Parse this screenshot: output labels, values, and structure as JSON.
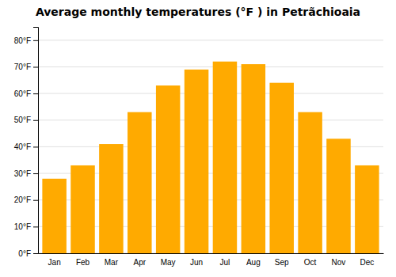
{
  "chart_data": {
    "type": "bar",
    "title": "Average monthly temperatures (°F ) in Petrãchioaia",
    "categories": [
      "Jan",
      "Feb",
      "Mar",
      "Apr",
      "May",
      "Jun",
      "Jul",
      "Aug",
      "Sep",
      "Oct",
      "Nov",
      "Dec"
    ],
    "values": [
      28,
      33,
      41,
      53,
      63,
      69,
      72,
      71,
      64,
      53,
      43,
      33
    ],
    "color": "#FFAA00",
    "ylim": [
      0,
      85
    ],
    "yticks": [
      {
        "value": 0,
        "label": "0°F"
      },
      {
        "value": 10,
        "label": "10°F"
      },
      {
        "value": 20,
        "label": "20°F"
      },
      {
        "value": 30,
        "label": "30°F"
      },
      {
        "value": 40,
        "label": "40°F"
      },
      {
        "value": 50,
        "label": "50°F"
      },
      {
        "value": 60,
        "label": "60°F"
      },
      {
        "value": 70,
        "label": "70°F"
      },
      {
        "value": 80,
        "label": "80°F"
      }
    ],
    "grid": true
  }
}
